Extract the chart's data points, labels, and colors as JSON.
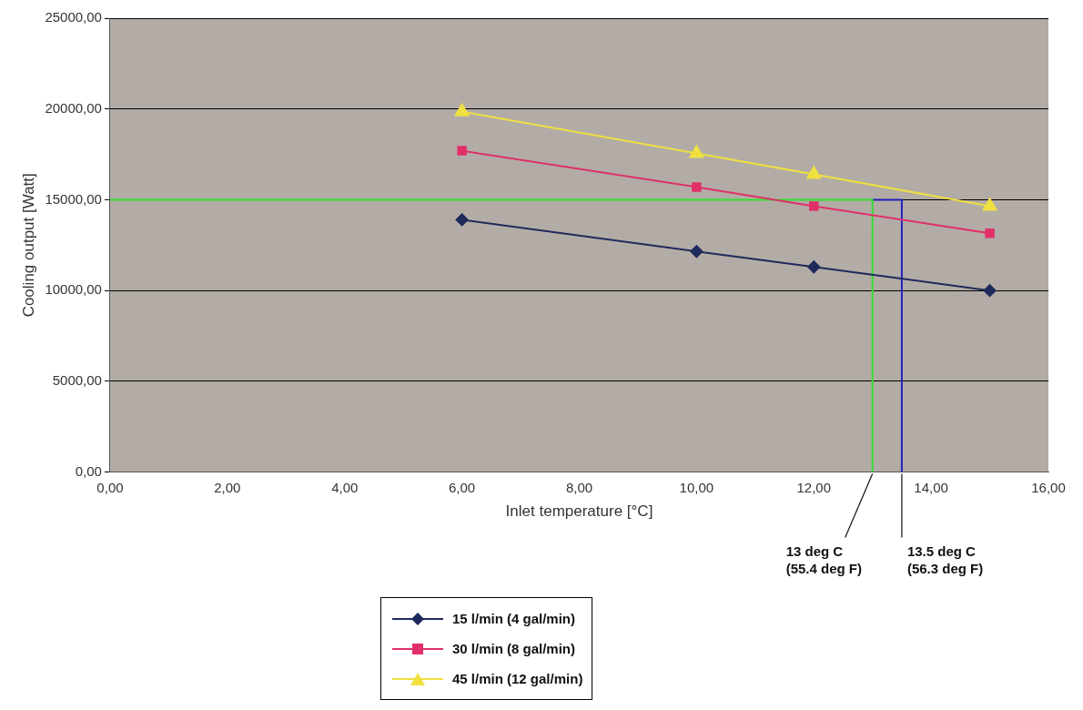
{
  "chart_data": {
    "type": "line",
    "xlabel": "Inlet temperature [°C]",
    "ylabel": "Cooling output [Watt]",
    "xlim": [
      0,
      16
    ],
    "xticks": [
      {
        "value": 0,
        "label": "0,00"
      },
      {
        "value": 2,
        "label": "2,00"
      },
      {
        "value": 4,
        "label": "4,00"
      },
      {
        "value": 6,
        "label": "6,00"
      },
      {
        "value": 8,
        "label": "8,00"
      },
      {
        "value": 10,
        "label": "10,00"
      },
      {
        "value": 12,
        "label": "12,00"
      },
      {
        "value": 14,
        "label": "14,00"
      },
      {
        "value": 16,
        "label": "16,00"
      }
    ],
    "ylim": [
      0,
      25000
    ],
    "yticks": [
      {
        "value": 0,
        "label": "0,00"
      },
      {
        "value": 5000,
        "label": "5000,00"
      },
      {
        "value": 10000,
        "label": "10000,00"
      },
      {
        "value": 15000,
        "label": "15000,00"
      },
      {
        "value": 20000,
        "label": "20000,00"
      },
      {
        "value": 25000,
        "label": "25000,00"
      }
    ],
    "grid": "y",
    "legend": "bottom",
    "series": [
      {
        "name": "15 l/min (4 gal/min)",
        "color": "#1f2a5c",
        "marker": "diamond",
        "x": [
          6,
          10,
          12,
          15
        ],
        "values": [
          13900,
          12150,
          11300,
          10000
        ]
      },
      {
        "name": "30 l/min (8 gal/min)",
        "color": "#e0306a",
        "marker": "square",
        "x": [
          6,
          10,
          12,
          15
        ],
        "values": [
          17700,
          15700,
          14650,
          13150
        ]
      },
      {
        "name": "45 l/min (12 gal/min)",
        "color": "#f0e040",
        "marker": "triangle",
        "x": [
          6,
          10,
          12,
          15
        ],
        "values": [
          19850,
          17550,
          16400,
          14650
        ]
      },
      {
        "color": "#33dd33",
        "marker": "none",
        "x": [
          0,
          13,
          13
        ],
        "values": [
          15000,
          15000,
          0
        ]
      },
      {
        "color": "#2020c0",
        "marker": "none",
        "x": [
          13,
          13.5,
          13.5
        ],
        "values": [
          15000,
          15000,
          0
        ]
      }
    ],
    "annotations": [
      {
        "text": "13 deg C\n(55.4 deg F)",
        "x": 13,
        "y": 0
      },
      {
        "text": "13.5 deg C\n(56.3 deg F)",
        "x": 13.5,
        "y": 0
      }
    ]
  }
}
